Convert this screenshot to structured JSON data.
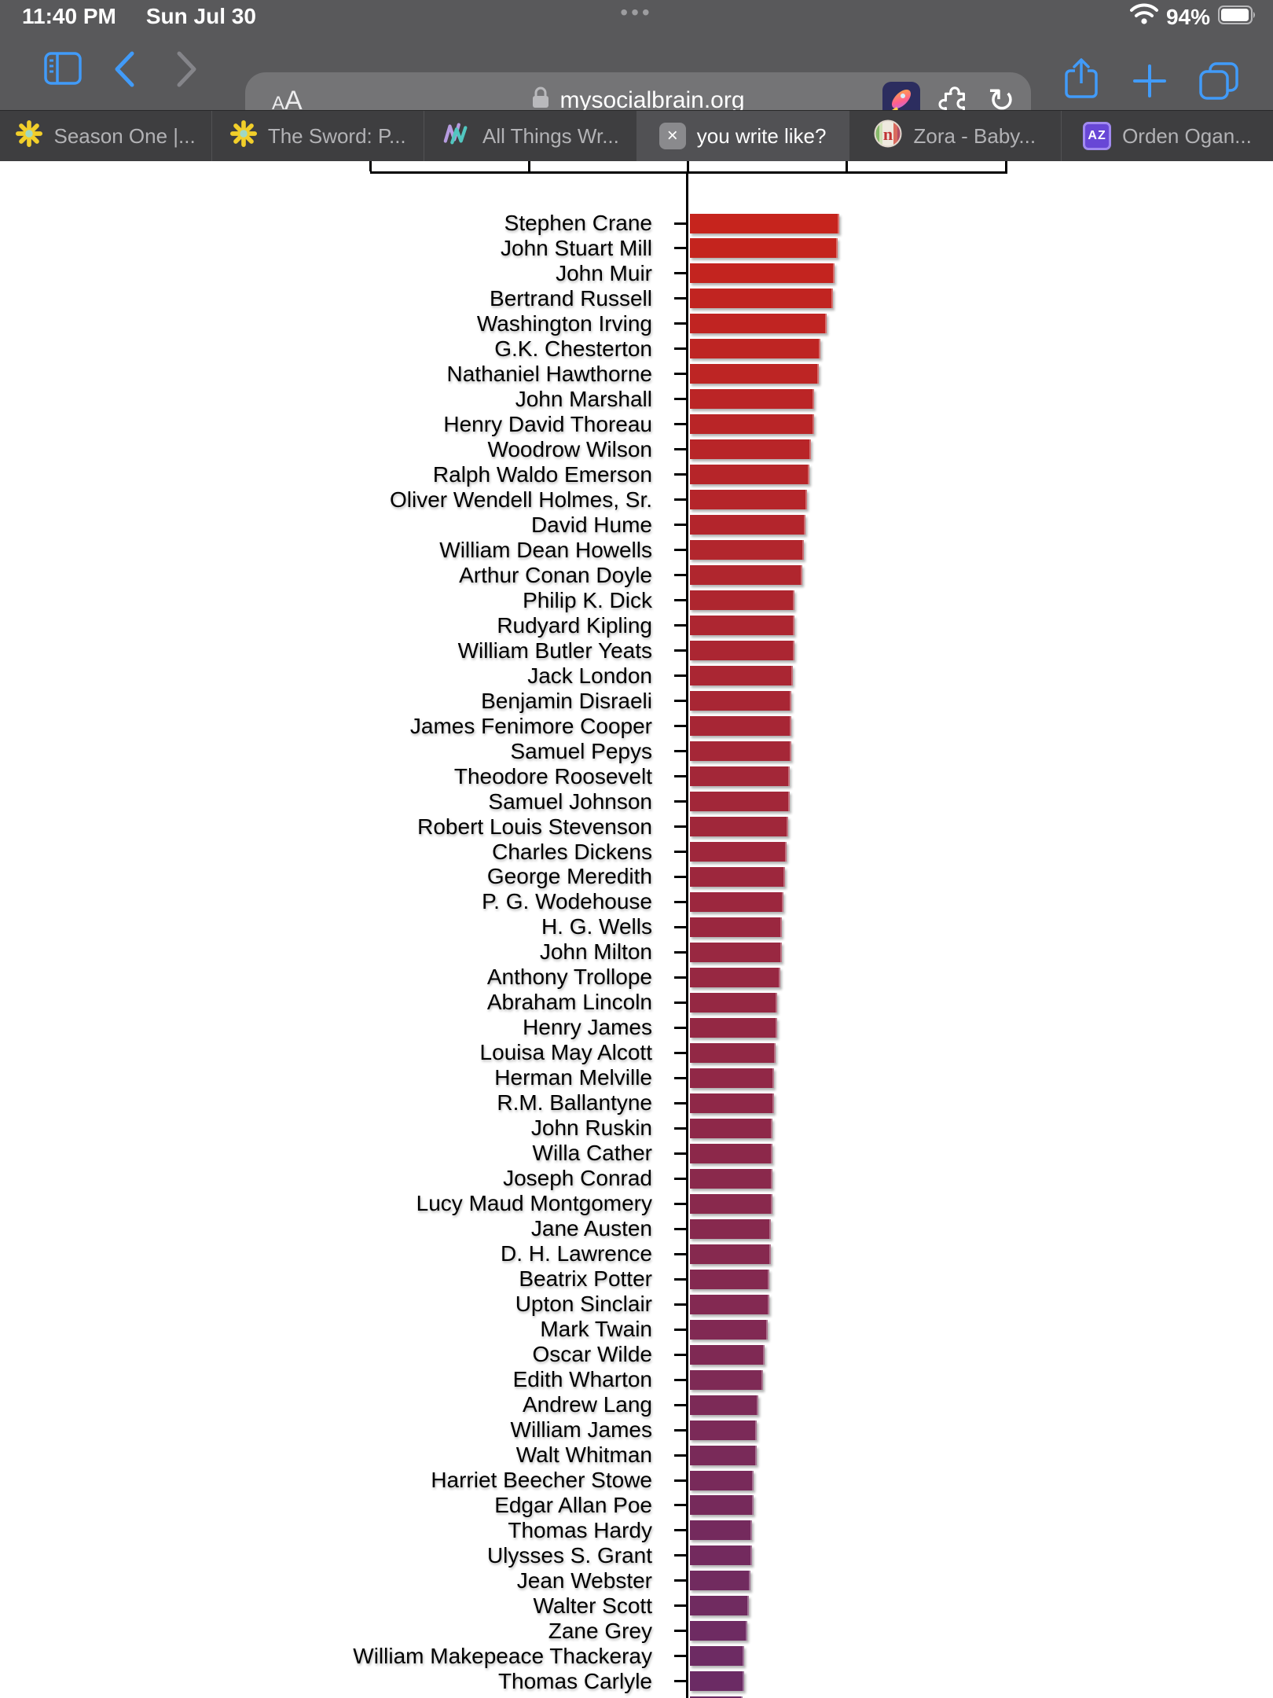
{
  "status_bar": {
    "time": "11:40 PM",
    "date": "Sun Jul 30",
    "battery_percent": "94%",
    "multitask_dots": "•••",
    "icons": [
      "wifi-icon",
      "battery-icon"
    ]
  },
  "toolbar": {
    "reader_button_small": "A",
    "reader_button_large": "A",
    "url": "mysocialbrain.org",
    "reload_glyph": "↻",
    "plus_glyph": "+",
    "icons": [
      "sidebar-icon",
      "back-chevron-icon",
      "forward-chevron-icon",
      "lock-icon",
      "rocket-extension-icon",
      "puzzle-extension-icon",
      "reload-icon",
      "share-icon",
      "plus-icon",
      "tabs-icon"
    ]
  },
  "tabs": [
    {
      "label": "Season One |...",
      "favicon": "starburst-icon",
      "active": false
    },
    {
      "label": "The Sword: P...",
      "favicon": "starburst-icon",
      "active": false
    },
    {
      "label": "All Things Wr...",
      "favicon": "squiggle-icon",
      "active": false
    },
    {
      "label": "you write like?",
      "favicon": "close-icon",
      "close_glyph": "×",
      "active": true
    },
    {
      "label": "Zora - Baby...",
      "favicon": "zora-n-icon",
      "active": false
    },
    {
      "label": "Orden Ogan...",
      "favicon": "az-badge-icon",
      "favicon_text": "AZ",
      "active": false
    }
  ],
  "colors": {
    "chrome_bg": "#59595b",
    "url_pill_bg": "#747476",
    "tabbar_bg": "#3e3e40",
    "active_tab_bg": "#515154",
    "accent_blue": "#419bf9",
    "bar_gradient_start": "#c6241d",
    "bar_gradient_end": "#6b2b64"
  },
  "chart_data": {
    "type": "bar",
    "orientation": "horizontal",
    "title": "",
    "xlabel": "",
    "ylabel": "",
    "note": "x-axis drawn at top of plot; tick labels scrolled out of view behind the tab bar; values estimated in axis tick units (1 unit = spacing between adjacent ticks; zero line at center tick)",
    "categories": [
      "Stephen Crane",
      "John Stuart Mill",
      "John Muir",
      "Bertrand Russell",
      "Washington Irving",
      "G.K. Chesterton",
      "Nathaniel Hawthorne",
      "John Marshall",
      "Henry David Thoreau",
      "Woodrow Wilson",
      "Ralph Waldo Emerson",
      "Oliver Wendell Holmes, Sr.",
      "David Hume",
      "William Dean Howells",
      "Arthur Conan Doyle",
      "Philip K. Dick",
      "Rudyard Kipling",
      "William Butler Yeats",
      "Jack London",
      "Benjamin Disraeli",
      "James Fenimore Cooper",
      "Samuel Pepys",
      "Theodore Roosevelt",
      "Samuel Johnson",
      "Robert Louis Stevenson",
      "Charles Dickens",
      "George Meredith",
      "P. G. Wodehouse",
      "H. G. Wells",
      "John Milton",
      "Anthony Trollope",
      "Abraham Lincoln",
      "Henry James",
      "Louisa May Alcott",
      "Herman Melville",
      "R.M. Ballantyne",
      "John Ruskin",
      "Willa Cather",
      "Joseph Conrad",
      "Lucy Maud Montgomery",
      "Jane Austen",
      "D. H. Lawrence",
      "Beatrix Potter",
      "Upton Sinclair",
      "Mark Twain",
      "Oscar Wilde",
      "Edith Wharton",
      "Andrew Lang",
      "William James",
      "Walt Whitman",
      "Harriet Beecher Stowe",
      "Edgar Allan Poe",
      "Thomas Hardy",
      "Ulysses S. Grant",
      "Jean Webster",
      "Walter Scott",
      "Zane Grey",
      "William Makepeace Thackeray",
      "Thomas Carlyle"
    ],
    "values": [
      0.94,
      0.93,
      0.91,
      0.9,
      0.86,
      0.82,
      0.81,
      0.78,
      0.78,
      0.76,
      0.75,
      0.74,
      0.73,
      0.72,
      0.71,
      0.66,
      0.66,
      0.66,
      0.65,
      0.64,
      0.64,
      0.64,
      0.63,
      0.63,
      0.62,
      0.61,
      0.6,
      0.59,
      0.58,
      0.58,
      0.57,
      0.55,
      0.55,
      0.54,
      0.53,
      0.53,
      0.52,
      0.52,
      0.52,
      0.52,
      0.51,
      0.51,
      0.5,
      0.5,
      0.49,
      0.47,
      0.46,
      0.43,
      0.42,
      0.42,
      0.4,
      0.4,
      0.39,
      0.39,
      0.38,
      0.37,
      0.36,
      0.34,
      0.34
    ],
    "axis": {
      "ticks_visible": 5,
      "tick_spacing_units": 1,
      "zero_at_center_tick": true,
      "grid": false,
      "legend": false
    },
    "partial_60th_bar_cut_at_bottom": true,
    "partial_bar_value": 0.33
  }
}
